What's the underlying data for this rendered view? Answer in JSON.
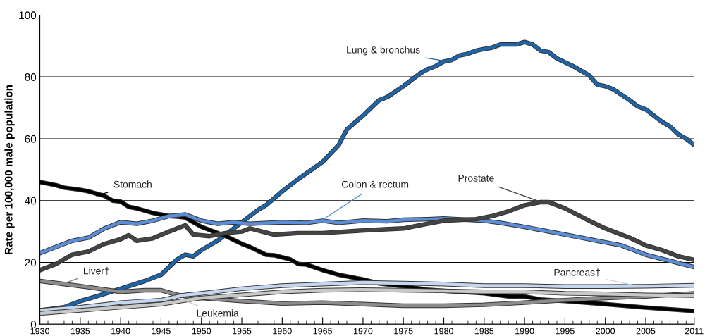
{
  "chart_data": {
    "type": "line",
    "ylabel": "Rate per 100,000 male population",
    "xlim": [
      1930,
      2011
    ],
    "xticks": [
      1930,
      1935,
      1940,
      1945,
      1950,
      1955,
      1960,
      1965,
      1970,
      1975,
      1980,
      1985,
      1990,
      1995,
      2000,
      2005,
      2011
    ],
    "ylim": [
      0,
      100
    ],
    "yticks": [
      0,
      20,
      40,
      60,
      80,
      100
    ],
    "grid": "y",
    "legend": false,
    "marker": "none",
    "line_style": "solid",
    "series": [
      {
        "name": "Lung & bronchus",
        "color": "#1e64a8",
        "x": [
          1930,
          1933,
          1935,
          1937,
          1940,
          1943,
          1945,
          1947,
          1948,
          1949,
          1950,
          1952,
          1955,
          1957,
          1958,
          1960,
          1962,
          1965,
          1967,
          1968,
          1970,
          1972,
          1973,
          1975,
          1977,
          1978,
          1979,
          1980,
          1981,
          1982,
          1983,
          1984,
          1985,
          1986,
          1987,
          1989,
          1990,
          1991,
          1992,
          1993,
          1994,
          1996,
          1998,
          1999,
          2000,
          2001,
          2003,
          2004,
          2005,
          2007,
          2008,
          2009,
          2010,
          2011
        ],
        "values": [
          4.5,
          5.5,
          7.5,
          9,
          11.5,
          14,
          16,
          21,
          22.5,
          22,
          24,
          27,
          33,
          37,
          38.5,
          43,
          47,
          52.5,
          58,
          63,
          67.5,
          72.5,
          73.5,
          77,
          81,
          82.5,
          83.5,
          85,
          85.5,
          87,
          87.5,
          88.5,
          89,
          89.5,
          90.5,
          90.5,
          91.3,
          90.5,
          88.5,
          88,
          86,
          83.5,
          80.5,
          77.5,
          77,
          76,
          72.5,
          70.5,
          69.5,
          65.5,
          64,
          61.5,
          60,
          58
        ]
      },
      {
        "name": "Stomach",
        "color": "#000000",
        "x": [
          1930,
          1932,
          1933,
          1935,
          1936,
          1938,
          1939,
          1940,
          1941,
          1942,
          1944,
          1946,
          1947,
          1948,
          1949,
          1950,
          1952,
          1953,
          1955,
          1956,
          1958,
          1959,
          1961,
          1962,
          1963,
          1965,
          1967,
          1970,
          1972,
          1975,
          1978,
          1980,
          1985,
          1988,
          1990,
          1992,
          1995,
          2000,
          2005,
          2011
        ],
        "values": [
          46,
          45,
          44.2,
          43.5,
          43,
          41.5,
          40,
          39.7,
          38,
          37.5,
          36,
          35,
          34.8,
          34.5,
          33,
          31.5,
          29.5,
          28.5,
          26,
          25,
          22.5,
          22.3,
          21,
          19.5,
          19.3,
          17.5,
          16,
          14.5,
          13.2,
          12.3,
          11.2,
          10.8,
          10,
          9,
          9,
          8,
          7.5,
          6.5,
          5.4,
          4.3
        ]
      },
      {
        "name": "Colon & rectum",
        "color": "#5b8ed6",
        "x": [
          1930,
          1932,
          1934,
          1936,
          1938,
          1940,
          1942,
          1944,
          1946,
          1948,
          1950,
          1952,
          1954,
          1956,
          1960,
          1963,
          1965,
          1967,
          1970,
          1973,
          1975,
          1978,
          1980,
          1983,
          1985,
          1987,
          1990,
          1993,
          1996,
          1999,
          2002,
          2005,
          2008,
          2011
        ],
        "values": [
          23,
          25,
          27,
          28,
          31,
          33,
          32.5,
          33.5,
          35,
          35.5,
          33.5,
          32.5,
          33,
          32.5,
          33,
          32.8,
          33.5,
          32.8,
          33.5,
          33.3,
          33.8,
          34,
          34.2,
          33.8,
          33.5,
          32.8,
          31.5,
          30,
          28.5,
          27,
          25.5,
          22.5,
          20.5,
          18.5
        ]
      },
      {
        "name": "Prostate",
        "color": "#444444",
        "x": [
          1930,
          1932,
          1934,
          1936,
          1938,
          1940,
          1941,
          1942,
          1944,
          1946,
          1948,
          1949,
          1951,
          1953,
          1955,
          1956,
          1959,
          1962,
          1965,
          1968,
          1971,
          1975,
          1978,
          1980,
          1984,
          1986,
          1988,
          1990,
          1992,
          1993,
          1995,
          1998,
          2000,
          2003,
          2005,
          2007,
          2009,
          2011
        ],
        "values": [
          17.5,
          19.5,
          22.5,
          23.5,
          26,
          27.5,
          28.8,
          27,
          27.8,
          30,
          32,
          29,
          28.5,
          29.5,
          30,
          31,
          29,
          29.5,
          29.5,
          30,
          30.5,
          31,
          32.5,
          33.5,
          34,
          35,
          36.5,
          38.5,
          39.5,
          39.5,
          37.5,
          33.5,
          31,
          28,
          25.5,
          24,
          22,
          20.8
        ]
      },
      {
        "name": "Liver†",
        "color": "#8c8c8c",
        "x": [
          1930,
          1933,
          1936,
          1940,
          1943,
          1945,
          1947,
          1950,
          1955,
          1960,
          1965,
          1970,
          1975,
          1980,
          1985,
          1990,
          1995,
          2000,
          2005,
          2011
        ],
        "values": [
          14,
          13,
          12,
          10.5,
          11,
          11,
          9.5,
          8.5,
          7.5,
          6.7,
          7,
          6.5,
          6,
          6,
          6.3,
          7,
          7.8,
          8.5,
          9,
          10
        ]
      },
      {
        "name": "Pancreas†",
        "color": "#c5d6f0",
        "x": [
          1930,
          1935,
          1940,
          1945,
          1948,
          1950,
          1955,
          1960,
          1965,
          1970,
          1975,
          1980,
          1985,
          1990,
          1995,
          2000,
          2005,
          2011
        ],
        "values": [
          4.5,
          5.5,
          7,
          7.8,
          9.5,
          10,
          11.5,
          12.5,
          13,
          13.5,
          13.3,
          13,
          12.5,
          12.5,
          12.2,
          12.2,
          12.3,
          12.6
        ]
      },
      {
        "name": "Leukemia",
        "color": "#c8c8c8",
        "x": [
          1930,
          1935,
          1940,
          1945,
          1950,
          1955,
          1960,
          1965,
          1970,
          1975,
          1980,
          1985,
          1990,
          1995,
          2000,
          2005,
          2011
        ],
        "values": [
          3.5,
          4.5,
          5.5,
          6.5,
          8.5,
          9.5,
          10.5,
          11,
          11.2,
          11,
          10.8,
          10.5,
          10.5,
          10,
          9.8,
          9.5,
          9.3
        ]
      }
    ]
  }
}
